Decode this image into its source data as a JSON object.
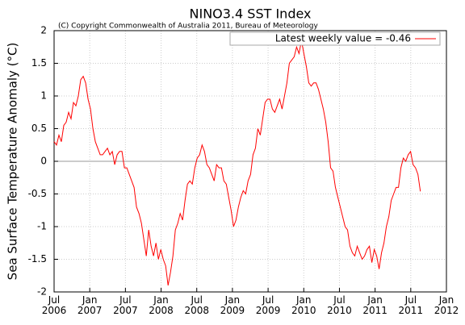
{
  "chart_data": {
    "type": "line",
    "title": "NINO3.4 SST Index",
    "subtitle": "(C) Copyright Commonwealth of Australia 2011, Bureau of Meteorology",
    "ylabel": "Sea Surface Temperature Anomaly (°C)",
    "xlim": [
      2006.5,
      2012
    ],
    "xticks": [
      {
        "value": 2006.5,
        "label": "Jul 2006"
      },
      {
        "value": 2007,
        "label": "Jan 2007"
      },
      {
        "value": 2007.5,
        "label": "Jul 2007"
      },
      {
        "value": 2008,
        "label": "Jan 2008"
      },
      {
        "value": 2008.5,
        "label": "Jul 2008"
      },
      {
        "value": 2009,
        "label": "Jan 2009"
      },
      {
        "value": 2009.5,
        "label": "Jul 2009"
      },
      {
        "value": 2010,
        "label": "Jan 2010"
      },
      {
        "value": 2010.5,
        "label": "Jul 2010"
      },
      {
        "value": 2011,
        "label": "Jan 2011"
      },
      {
        "value": 2011.5,
        "label": "Jul 2011"
      },
      {
        "value": 2012,
        "label": "Jan 2012"
      }
    ],
    "ylim": [
      -2,
      2
    ],
    "yticks": [
      -2,
      -1.5,
      -1,
      -0.5,
      0,
      0.5,
      1,
      1.5,
      2
    ],
    "grid": true,
    "legend": "upper right",
    "x": [
      2006.5,
      2006.534,
      2006.568,
      2006.602,
      2006.636,
      2006.67,
      2006.704,
      2006.738,
      2006.772,
      2006.806,
      2006.84,
      2006.874,
      2006.908,
      2006.942,
      2006.976,
      2007.01,
      2007.044,
      2007.078,
      2007.112,
      2007.146,
      2007.18,
      2007.214,
      2007.248,
      2007.282,
      2007.316,
      2007.35,
      2007.384,
      2007.418,
      2007.452,
      2007.486,
      2007.52,
      2007.554,
      2007.588,
      2007.622,
      2007.656,
      2007.69,
      2007.724,
      2007.758,
      2007.792,
      2007.826,
      2007.86,
      2007.894,
      2007.928,
      2007.962,
      2007.996,
      2008.03,
      2008.064,
      2008.098,
      2008.132,
      2008.166,
      2008.2,
      2008.234,
      2008.268,
      2008.302,
      2008.336,
      2008.37,
      2008.404,
      2008.438,
      2008.472,
      2008.506,
      2008.54,
      2008.574,
      2008.608,
      2008.642,
      2008.676,
      2008.71,
      2008.744,
      2008.778,
      2008.812,
      2008.846,
      2008.88,
      2008.914,
      2008.948,
      2008.982,
      2009.016,
      2009.05,
      2009.084,
      2009.118,
      2009.152,
      2009.186,
      2009.22,
      2009.254,
      2009.288,
      2009.322,
      2009.356,
      2009.39,
      2009.424,
      2009.458,
      2009.492,
      2009.526,
      2009.56,
      2009.594,
      2009.628,
      2009.662,
      2009.696,
      2009.73,
      2009.764,
      2009.798,
      2009.832,
      2009.866,
      2009.9,
      2009.934,
      2009.968,
      2010.002,
      2010.036,
      2010.07,
      2010.104,
      2010.138,
      2010.172,
      2010.206,
      2010.24,
      2010.274,
      2010.308,
      2010.342,
      2010.376,
      2010.41,
      2010.444,
      2010.478,
      2010.512,
      2010.546,
      2010.58,
      2010.614,
      2010.648,
      2010.682,
      2010.716,
      2010.75,
      2010.784,
      2010.818,
      2010.852,
      2010.886,
      2010.92,
      2010.954,
      2010.988,
      2011.022,
      2011.056,
      2011.09,
      2011.124,
      2011.158,
      2011.192,
      2011.226,
      2011.26,
      2011.294,
      2011.328,
      2011.362,
      2011.396,
      2011.43,
      2011.464,
      2011.498,
      2011.532,
      2011.566,
      2011.6,
      2011.634
    ],
    "series": [
      {
        "name": "Latest weekly value = -0.46",
        "color": "#ff0000",
        "values": [
          0.3,
          0.25,
          0.4,
          0.3,
          0.55,
          0.6,
          0.75,
          0.65,
          0.9,
          0.85,
          1.0,
          1.25,
          1.3,
          1.2,
          0.95,
          0.8,
          0.5,
          0.3,
          0.2,
          0.1,
          0.1,
          0.15,
          0.2,
          0.1,
          0.15,
          -0.05,
          0.1,
          0.15,
          0.15,
          -0.1,
          -0.1,
          -0.2,
          -0.3,
          -0.4,
          -0.7,
          -0.8,
          -0.95,
          -1.2,
          -1.45,
          -1.05,
          -1.3,
          -1.45,
          -1.25,
          -1.5,
          -1.35,
          -1.5,
          -1.6,
          -1.9,
          -1.7,
          -1.45,
          -1.05,
          -0.95,
          -0.8,
          -0.9,
          -0.6,
          -0.35,
          -0.3,
          -0.35,
          -0.1,
          0.05,
          0.1,
          0.25,
          0.15,
          -0.05,
          -0.1,
          -0.2,
          -0.3,
          -0.05,
          -0.1,
          -0.1,
          -0.3,
          -0.35,
          -0.55,
          -0.75,
          -1.0,
          -0.9,
          -0.7,
          -0.55,
          -0.45,
          -0.5,
          -0.3,
          -0.2,
          0.1,
          0.2,
          0.5,
          0.4,
          0.65,
          0.9,
          0.95,
          0.95,
          0.8,
          0.75,
          0.85,
          0.95,
          0.8,
          1.0,
          1.2,
          1.5,
          1.55,
          1.6,
          1.75,
          1.65,
          1.85,
          1.65,
          1.45,
          1.2,
          1.15,
          1.2,
          1.2,
          1.1,
          0.95,
          0.8,
          0.6,
          0.3,
          -0.1,
          -0.15,
          -0.4,
          -0.55,
          -0.7,
          -0.85,
          -1.0,
          -1.05,
          -1.3,
          -1.4,
          -1.45,
          -1.3,
          -1.4,
          -1.5,
          -1.45,
          -1.35,
          -1.3,
          -1.55,
          -1.35,
          -1.45,
          -1.65,
          -1.4,
          -1.25,
          -1.0,
          -0.85,
          -0.6,
          -0.5,
          -0.4,
          -0.4,
          -0.1,
          0.05,
          0.0,
          0.1,
          0.15,
          -0.05,
          -0.1,
          -0.2,
          -0.46
        ]
      }
    ]
  }
}
